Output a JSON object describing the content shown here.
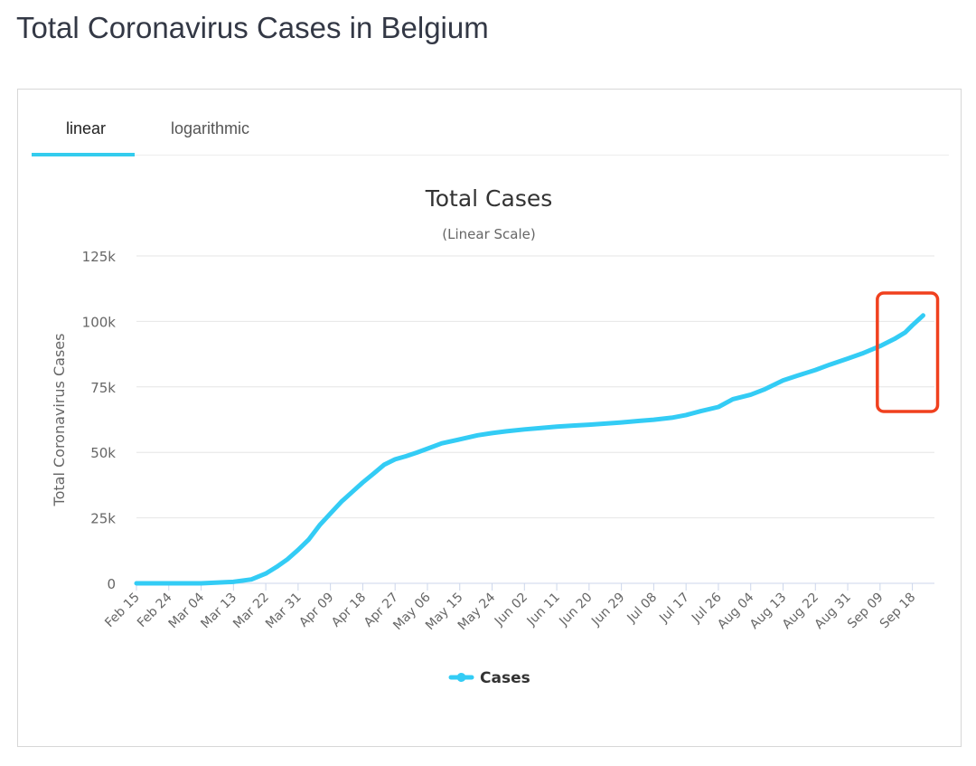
{
  "page": {
    "title": "Total Coronavirus Cases in Belgium"
  },
  "tabs": [
    {
      "label": "linear",
      "active": true
    },
    {
      "label": "logarithmic",
      "active": false
    }
  ],
  "colors": {
    "series": "#33ccf5",
    "highlight": "#f0401e",
    "tab_underline": "#33ccee"
  },
  "chart_data": {
    "type": "line",
    "title": "Total Cases",
    "subtitle": "(Linear Scale)",
    "ylabel": "Total Coronavirus Cases",
    "xlabel": "",
    "ylim": [
      0,
      125000
    ],
    "y_ticks": [
      0,
      25000,
      50000,
      75000,
      100000,
      125000
    ],
    "y_tick_labels": [
      "0",
      "25k",
      "50k",
      "75k",
      "100k",
      "125k"
    ],
    "x_tick_labels": [
      "Feb 15",
      "Feb 24",
      "Mar 04",
      "Mar 13",
      "Mar 22",
      "Mar 31",
      "Apr 09",
      "Apr 18",
      "Apr 27",
      "May 06",
      "May 15",
      "May 24",
      "Jun 02",
      "Jun 11",
      "Jun 20",
      "Jun 29",
      "Jul 08",
      "Jul 17",
      "Jul 26",
      "Aug 04",
      "Aug 13",
      "Aug 22",
      "Aug 31",
      "Sep 09",
      "Sep 18"
    ],
    "grid": true,
    "legend": "bottom-center",
    "series": [
      {
        "name": "Cases",
        "x": [
          "Feb 15",
          "Feb 24",
          "Mar 04",
          "Mar 13",
          "Mar 18",
          "Mar 22",
          "Mar 25",
          "Mar 28",
          "Mar 31",
          "Apr 03",
          "Apr 06",
          "Apr 09",
          "Apr 12",
          "Apr 15",
          "Apr 18",
          "Apr 21",
          "Apr 24",
          "Apr 27",
          "Apr 30",
          "May 03",
          "May 06",
          "May 10",
          "May 15",
          "May 20",
          "May 24",
          "May 28",
          "Jun 02",
          "Jun 07",
          "Jun 11",
          "Jun 16",
          "Jun 20",
          "Jun 25",
          "Jun 29",
          "Jul 04",
          "Jul 08",
          "Jul 13",
          "Jul 17",
          "Jul 21",
          "Jul 26",
          "Jul 30",
          "Aug 04",
          "Aug 08",
          "Aug 13",
          "Aug 17",
          "Aug 22",
          "Aug 26",
          "Aug 31",
          "Sep 04",
          "Sep 09",
          "Sep 13",
          "Sep 16",
          "Sep 18",
          "Sep 21"
        ],
        "y": [
          1,
          1,
          8,
          559,
          1486,
          3743,
          6235,
          9134,
          12775,
          16770,
          22194,
          26667,
          31119,
          34809,
          38496,
          41889,
          45325,
          47334,
          48519,
          49906,
          51420,
          53449,
          54989,
          56511,
          57342,
          58061,
          58767,
          59348,
          59819,
          60244,
          60550,
          61007,
          61427,
          62016,
          62469,
          63238,
          64258,
          65727,
          67335,
          70314,
          72016,
          74152,
          77488,
          79297,
          81468,
          83500,
          85817,
          87745,
          90568,
          93300,
          95800,
          98500,
          102295
        ]
      }
    ]
  },
  "highlight": {
    "from": "Sep 09",
    "to": "Sep 21"
  }
}
